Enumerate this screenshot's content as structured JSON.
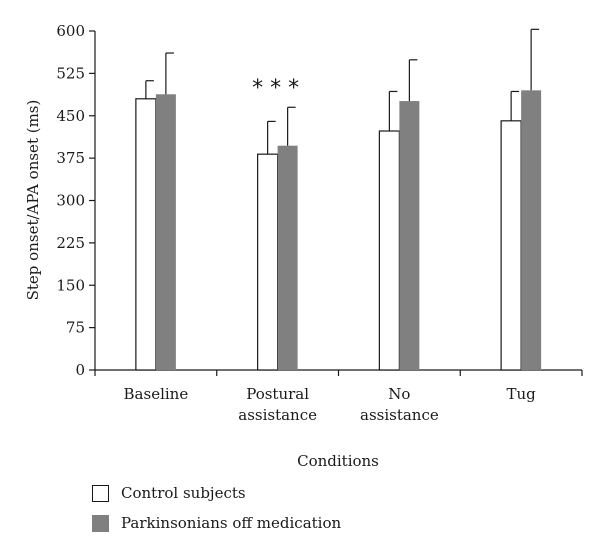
{
  "chart_data": {
    "type": "bar",
    "xlabel": "Conditions",
    "ylabel": "Step onset/APA onset (ms)",
    "ylim": [
      0,
      600
    ],
    "yticks": [
      0,
      75,
      150,
      225,
      300,
      375,
      450,
      525,
      600
    ],
    "categories": [
      [
        "Baseline"
      ],
      [
        "Postural",
        "assistance"
      ],
      [
        "No",
        "assistance"
      ],
      [
        "Tug"
      ]
    ],
    "series": [
      {
        "name": "Control subjects",
        "color": "#ffffff",
        "values": [
          480,
          382,
          423,
          441
        ],
        "error": [
          32,
          58,
          70,
          52
        ]
      },
      {
        "name": "Parkinsonians off medication",
        "color": "#808080",
        "values": [
          488,
          397,
          476,
          495
        ],
        "error": [
          73,
          68,
          73,
          108
        ]
      }
    ],
    "annotations": [
      {
        "text": "* * *",
        "category_index": 1
      }
    ],
    "grid": false,
    "legend_position": "bottom-left"
  }
}
